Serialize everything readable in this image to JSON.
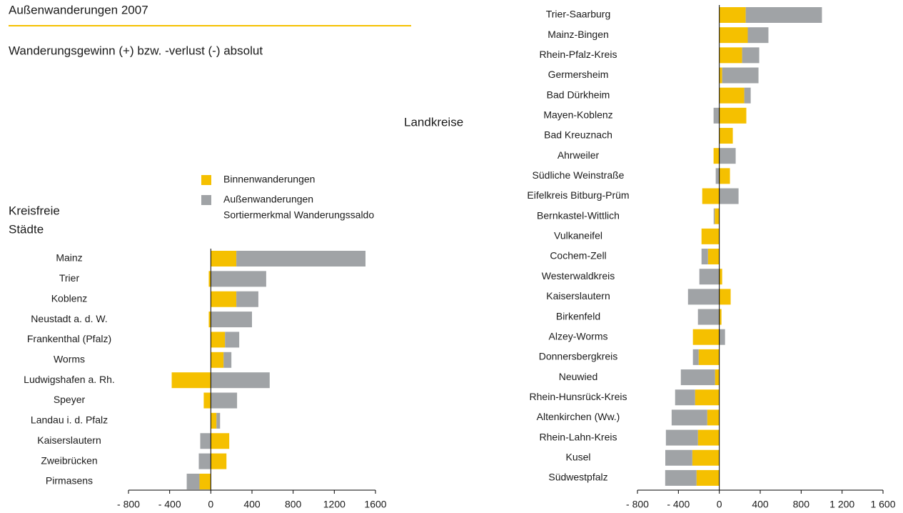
{
  "header": {
    "title": "Außenwanderungen 2007",
    "subtitle": "Wanderungsgewinn (+) bzw. -verlust (-) absolut"
  },
  "chart_data": [
    {
      "type": "bar",
      "orientation": "horizontal",
      "stacked": true,
      "title_lines": [
        "Kreisfreie",
        "Städte"
      ],
      "note": "Sortiermerkmal Wanderungssaldo",
      "categories": [
        "Mainz",
        "Trier",
        "Koblenz",
        "Neustadt a. d. W.",
        "Frankenthal (Pfalz)",
        "Worms",
        "Ludwigshafen a. Rh.",
        "Speyer",
        "Landau i. d. Pfalz",
        "Kaiserslautern",
        "Zweibrücken",
        "Pirmasens"
      ],
      "series": [
        {
          "name": "Binnenwanderungen",
          "color": "#f5c000",
          "values": [
            248,
            -20,
            248,
            -20,
            138,
            124,
            -380,
            -69,
            55,
            179,
            152,
            -110
          ]
        },
        {
          "name": "Außenwanderungen",
          "color": "#a0a3a6",
          "values": [
            1255,
            538,
            214,
            400,
            138,
            76,
            572,
            255,
            35,
            -103,
            -117,
            -124
          ]
        }
      ],
      "xlim": [
        -800,
        1600
      ],
      "xticks": [
        {
          "value": -800,
          "label": "- 800"
        },
        {
          "value": -400,
          "label": "- 400"
        },
        0,
        400,
        800,
        1200,
        1600
      ]
    },
    {
      "type": "bar",
      "orientation": "horizontal",
      "stacked": true,
      "title": "Landkreise",
      "categories": [
        "Trier-Saarburg",
        "Mainz-Bingen",
        "Rhein-Pfalz-Kreis",
        "Germersheim",
        "Bad Dürkheim",
        "Mayen-Koblenz",
        "Bad Kreuznach",
        "Ahrweiler",
        "Südliche Weinstraße",
        "Eifelkreis Bitburg-Prüm",
        "Bernkastel-Wittlich",
        "Vulkaneifel",
        "Cochem-Zell",
        "Westerwaldkreis",
        "Kaiserslautern",
        "Birkenfeld",
        "Alzey-Worms",
        "Donnersbergkreis",
        "Neuwied",
        "Rhein-Hunsrück-Kreis",
        "Altenkirchen (Ww.)",
        "Rhein-Lahn-Kreis",
        "Kusel",
        "Südwestpfalz"
      ],
      "series": [
        {
          "color": "#f5c000",
          "values": [
            258,
            278,
            223,
            28,
            244,
            264,
            132,
            -56,
            104,
            -167,
            -45,
            -174,
            -111,
            28,
            111,
            21,
            -258,
            -202,
            -42,
            -237,
            -118,
            -209,
            -264,
            -223
          ]
        },
        {
          "color": "#a0a3a6",
          "values": [
            745,
            202,
            167,
            355,
            63,
            -56,
            0,
            160,
            -35,
            188,
            -10,
            0,
            -63,
            -195,
            -306,
            -209,
            56,
            -56,
            -334,
            -195,
            -348,
            -313,
            -264,
            -306
          ]
        }
      ],
      "xlim": [
        -800,
        1600
      ],
      "xticks": [
        {
          "value": -800,
          "label": "- 800"
        },
        {
          "value": -400,
          "label": "- 400"
        },
        0,
        400,
        800,
        {
          "value": 1200,
          "label": "1 200"
        },
        {
          "value": 1600,
          "label": "1 600"
        }
      ]
    }
  ]
}
